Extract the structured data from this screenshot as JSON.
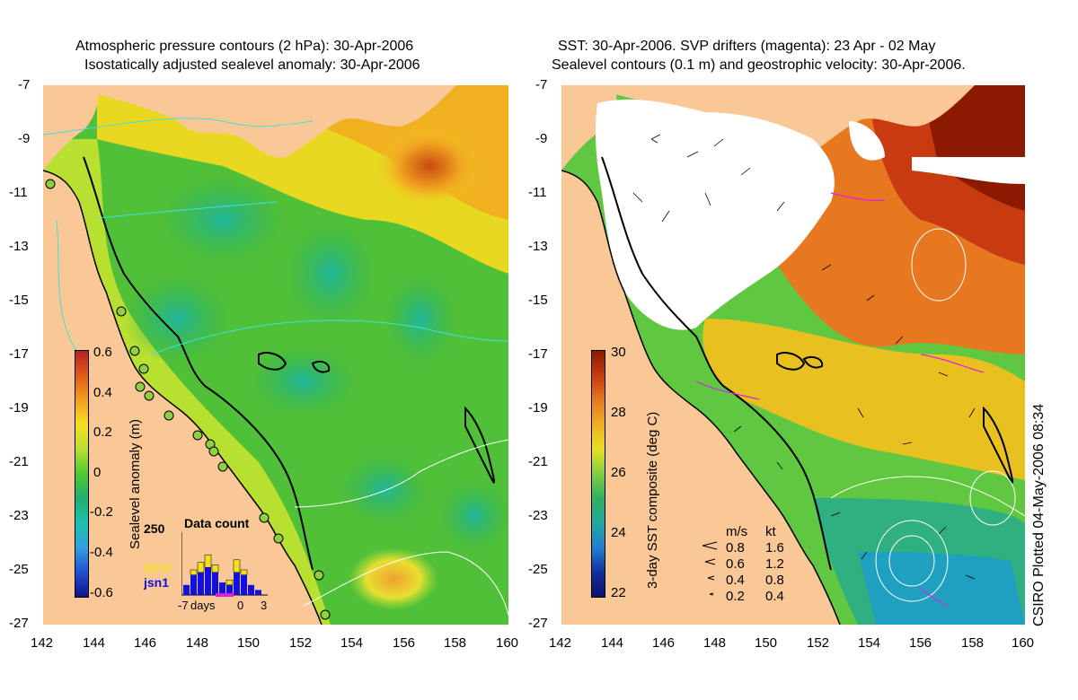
{
  "left_panel": {
    "title_line1": "Atmospheric pressure contours (2 hPa): 30-Apr-2006",
    "title_line2": "Isostatically adjusted sealevel anomaly: 30-Apr-2006",
    "colorbar_label": "Sealevel anomaly (m)",
    "colorbar_ticks": [
      "0.6",
      "0.4",
      "0.2",
      "0",
      "-0.2",
      "-0.4",
      "-0.6"
    ],
    "colorbar_stops": [
      "#b22222",
      "#e05a1a",
      "#f0a020",
      "#f5e020",
      "#b8e030",
      "#50c830",
      "#20b070",
      "#20c0b0",
      "#30a0e0",
      "#2050d0",
      "#101090"
    ],
    "inset": {
      "title": "Data count",
      "ymax_label": "250",
      "legend": [
        "GFO",
        "jsn1"
      ],
      "legend_colors": [
        "#f0e020",
        "#1010e0"
      ],
      "x_labels": [
        "-7",
        "days",
        "0",
        "3"
      ],
      "bars_total": [
        40,
        100,
        130,
        160,
        120,
        50,
        60,
        140,
        100,
        40,
        20
      ],
      "bars_jsn1": [
        40,
        80,
        90,
        110,
        90,
        50,
        40,
        90,
        80,
        40,
        20
      ]
    }
  },
  "right_panel": {
    "title_line1": "SST: 30-Apr-2006. SVP drifters (magenta): 23 Apr - 02 May",
    "title_line2": "Sealevel contours (0.1 m) and geostrophic velocity: 30-Apr-2006.",
    "colorbar_label": "3-day SST composite (deg C)",
    "colorbar_ticks": [
      "30",
      "28",
      "26",
      "24",
      "22"
    ],
    "colorbar_stops": [
      "#8b1a00",
      "#c83a10",
      "#e87820",
      "#f0b020",
      "#e8e020",
      "#80d040",
      "#30b060",
      "#20a8a0",
      "#2080d0",
      "#1030a0",
      "#101070"
    ],
    "velocity_legend": {
      "header": [
        "m/s",
        "kt"
      ],
      "rows": [
        [
          "0.8",
          "1.6"
        ],
        [
          "0.6",
          "1.2"
        ],
        [
          "0.4",
          "0.8"
        ],
        [
          "0.2",
          "0.4"
        ]
      ]
    }
  },
  "axes": {
    "y_ticks": [
      "-7",
      "-9",
      "-11",
      "-13",
      "-15",
      "-17",
      "-19",
      "-21",
      "-23",
      "-25",
      "-27"
    ],
    "x_ticks": [
      "142",
      "144",
      "146",
      "148",
      "150",
      "152",
      "154",
      "156",
      "158",
      "160"
    ],
    "lat_range": [
      -27,
      -7
    ],
    "lon_range": [
      142,
      160
    ]
  },
  "side_text": "CSIRO Plotted 04-May-2006 08:34",
  "colors": {
    "land": "#f9c896",
    "cloud": "#ffffff",
    "contour_cyan": "#40e0e0",
    "coast": "#000000"
  }
}
